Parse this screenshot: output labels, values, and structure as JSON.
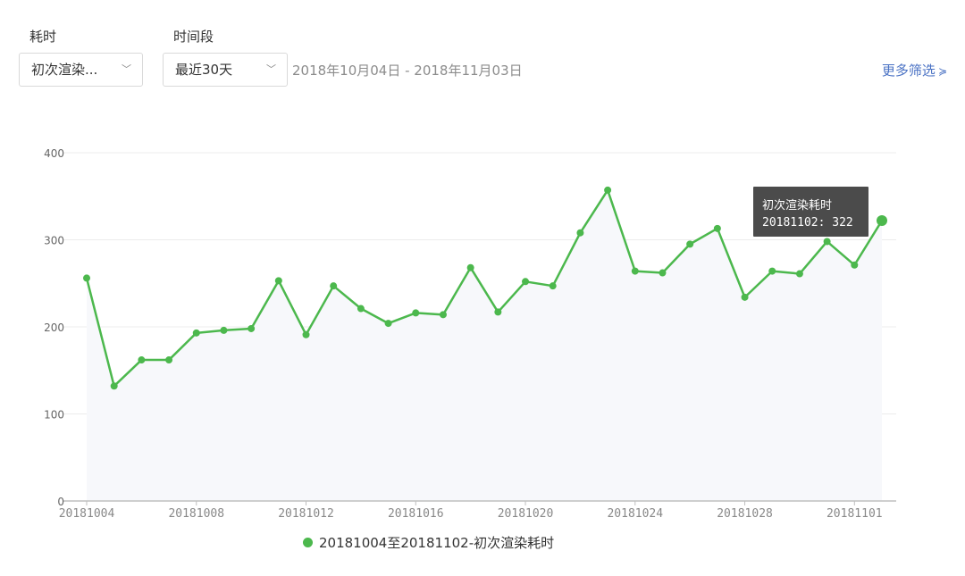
{
  "filters": {
    "metric_label": "耗时",
    "metric_value": "初次渲染...",
    "period_label": "时间段",
    "period_value": "最近30天",
    "date_range": "2018年10月04日 - 2018年11月03日",
    "more_filters": "更多筛选",
    "more_icon": "double-chevron-down-icon"
  },
  "chart_data": {
    "type": "line",
    "x": [
      "20181004",
      "20181005",
      "20181006",
      "20181007",
      "20181008",
      "20181009",
      "20181010",
      "20181011",
      "20181012",
      "20181013",
      "20181014",
      "20181015",
      "20181016",
      "20181017",
      "20181018",
      "20181019",
      "20181020",
      "20181021",
      "20181022",
      "20181023",
      "20181024",
      "20181025",
      "20181026",
      "20181027",
      "20181028",
      "20181029",
      "20181030",
      "20181031",
      "20181101",
      "20181102"
    ],
    "x_tick_labels": [
      "20181004",
      "20181008",
      "20181012",
      "20181016",
      "20181020",
      "20181024",
      "20181028",
      "20181101"
    ],
    "series": [
      {
        "name": "20181004至20181102-初次渲染耗时",
        "color": "#4cb84d",
        "values": [
          256,
          132,
          162,
          162,
          193,
          196,
          198,
          253,
          191,
          247,
          221,
          204,
          216,
          214,
          268,
          217,
          252,
          247,
          308,
          357,
          264,
          262,
          295,
          313,
          234,
          264,
          261,
          298,
          271,
          322
        ]
      }
    ],
    "y_ticks": [
      "0",
      "100",
      "200",
      "300",
      "400"
    ],
    "ylim": [
      0,
      400
    ],
    "grid": true,
    "area_fill": "#f7f8fb",
    "tooltip": {
      "title": "初次渲染耗时",
      "text": "20181102: 322",
      "index": 29
    },
    "legend_position": "bottom-center"
  }
}
